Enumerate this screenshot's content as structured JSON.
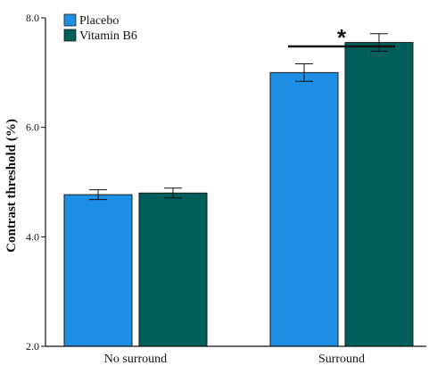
{
  "chart_data": {
    "type": "bar",
    "categories": [
      "No surround",
      "Surround"
    ],
    "series": [
      {
        "name": "Placebo",
        "color": "#1f8fe6",
        "values": [
          4.77,
          7.0
        ],
        "errors": [
          0.09,
          0.16
        ]
      },
      {
        "name": "Vitamin B6",
        "color": "#005f5b",
        "values": [
          4.8,
          7.55
        ],
        "errors": [
          0.09,
          0.16
        ]
      }
    ],
    "ylabel": "Contrast threshold (%)",
    "ylim": [
      2.0,
      8.0
    ],
    "yticks": [
      "2.0",
      "4.0",
      "6.0",
      "8.0"
    ],
    "legend_position": "top-left",
    "significance": {
      "label": "*",
      "category": "Surround"
    }
  }
}
